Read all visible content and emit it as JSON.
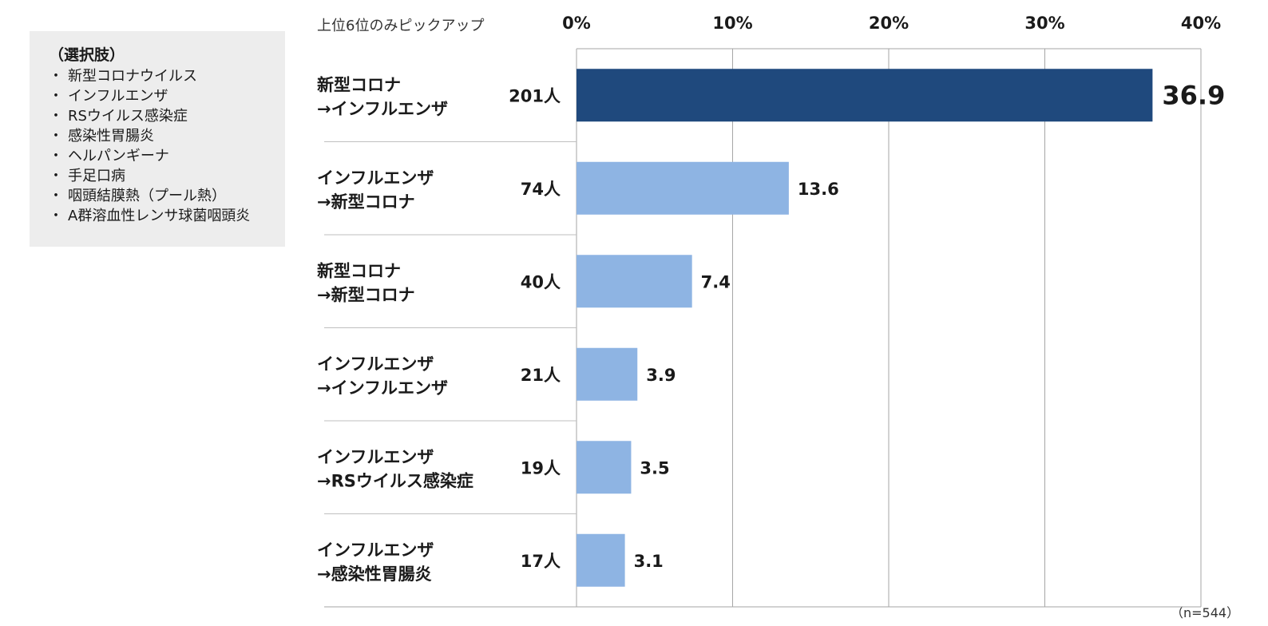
{
  "legend": {
    "title": "（選択肢）",
    "bullet": "・",
    "items": [
      "新型コロナウイルス",
      "インフルエンザ",
      "RSウイルス感染症",
      "感染性胃腸炎",
      "ヘルパンギーナ",
      "手足口病",
      "咽頭結膜熱（プール熱）",
      "A群溶血性レンサ球菌咽頭炎"
    ]
  },
  "pickup_note": "上位6位のみピックアップ",
  "sample_note": "（n=544）",
  "colors": {
    "highlight": "#1f497d",
    "bar": "#8eb4e3",
    "grid": "#a6a6a6",
    "separator": "#bfbfbf"
  },
  "chart_data": {
    "type": "bar",
    "orientation": "horizontal",
    "categories": [
      [
        "新型コロナ",
        "→インフルエンザ"
      ],
      [
        "インフルエンザ",
        "→新型コロナ"
      ],
      [
        "新型コロナ",
        "→新型コロナ"
      ],
      [
        "インフルエンザ",
        "→インフルエンザ"
      ],
      [
        "インフルエンザ",
        "→RSウイルス感染症"
      ],
      [
        "インフルエンザ",
        "→感染性胃腸炎"
      ]
    ],
    "counts": [
      "201人",
      "74人",
      "40人",
      "21人",
      "19人",
      "17人"
    ],
    "values": [
      36.9,
      13.6,
      7.4,
      3.9,
      3.5,
      3.1
    ],
    "value_labels": [
      "36.9",
      "13.6",
      "7.4",
      "3.9",
      "3.5",
      "3.1"
    ],
    "highlight_index": 0,
    "xlim": [
      0,
      40
    ],
    "xticks": [
      "0%",
      "10%",
      "20%",
      "30%",
      "40%"
    ],
    "grid": true,
    "xaxis_position": "top"
  }
}
